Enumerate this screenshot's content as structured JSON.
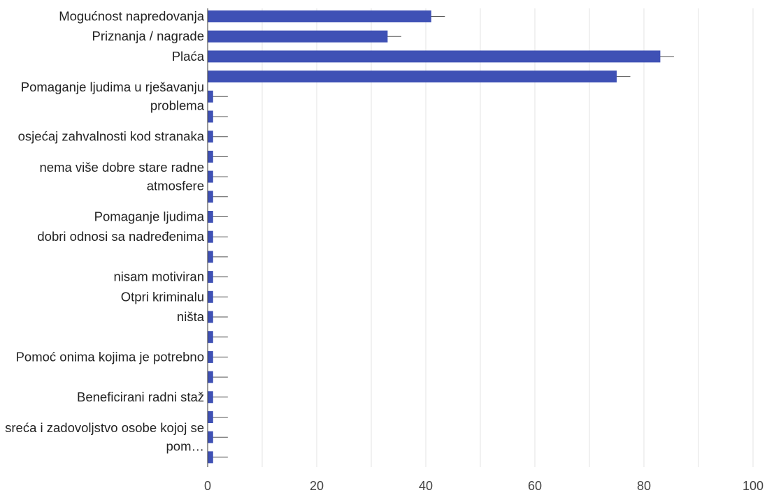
{
  "chart_data": {
    "type": "bar",
    "orientation": "horizontal",
    "title": "",
    "xlabel": "",
    "ylabel": "",
    "xlim": [
      0,
      100
    ],
    "x_ticks": [
      "0",
      "20",
      "40",
      "60",
      "80",
      "100"
    ],
    "grid": true,
    "legend": "none",
    "bar_color": "#3f51b5",
    "categories": [
      "Mogućnost napredovanja",
      "Priznanja / nagrade",
      "Plaća",
      "",
      "Pomaganje ljudima u rješavanju problema",
      "",
      "osjećaj zahvalnosti kod stranaka",
      "",
      "nema više dobre stare radne atmosfere",
      "",
      "Pomaganje ljudima",
      "dobri odnosi sa nadređenima",
      "",
      "nisam motiviran",
      "Otpri kriminalu",
      "ništa",
      "",
      "Pomoć onima kojima je potrebno",
      "",
      "Beneficirani radni staž",
      "",
      "sreća i zadovoljstvo osobe kojoj se pom…",
      ""
    ],
    "values": [
      41,
      33,
      83,
      75,
      1,
      1,
      1,
      1,
      1,
      1,
      1,
      1,
      1,
      1,
      1,
      1,
      1,
      1,
      1,
      1,
      1,
      1,
      1
    ],
    "error_upper": [
      43.5,
      35.5,
      85.5,
      77.5,
      3.7,
      3.7,
      3.7,
      3.7,
      3.7,
      3.7,
      3.7,
      3.7,
      3.7,
      3.7,
      3.7,
      3.7,
      3.7,
      3.7,
      3.7,
      3.7,
      3.7,
      3.7,
      3.7
    ]
  }
}
